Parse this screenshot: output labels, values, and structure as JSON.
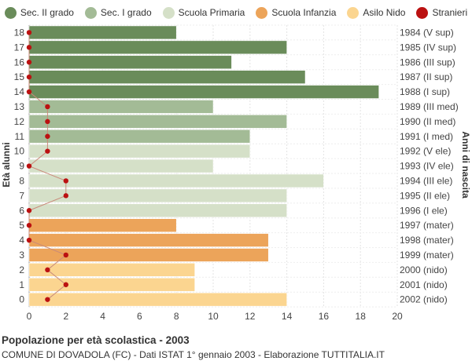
{
  "legend": [
    {
      "label": "Sec. II grado",
      "color": "#6a8c5a"
    },
    {
      "label": "Sec. I grado",
      "color": "#a3bb96"
    },
    {
      "label": "Scuola Primaria",
      "color": "#d5e0c8"
    },
    {
      "label": "Scuola Infanzia",
      "color": "#eca45a"
    },
    {
      "label": "Asilo Nido",
      "color": "#fbd590"
    },
    {
      "label": "Stranieri",
      "color": "#bb1111"
    }
  ],
  "footer": {
    "title": "Popolazione per età scolastica - 2003",
    "subtitle": "COMUNE DI DOVADOLA (FC) - Dati ISTAT 1° gennaio 2003 - Elaborazione TUTTITALIA.IT"
  },
  "chart_data": {
    "type": "bar",
    "orientation": "horizontal",
    "ylabel": "Età alunni",
    "y2label": "Anni di nascita",
    "xlim": [
      0,
      20
    ],
    "xticks": [
      0,
      2,
      4,
      6,
      8,
      10,
      12,
      14,
      16,
      18,
      20
    ],
    "grid": true,
    "legend_position": "top",
    "categories": [
      "18",
      "17",
      "16",
      "15",
      "14",
      "13",
      "12",
      "11",
      "10",
      "9",
      "8",
      "7",
      "6",
      "5",
      "4",
      "3",
      "2",
      "1",
      "0"
    ],
    "birth_years": [
      "1984 (V sup)",
      "1985 (IV sup)",
      "1986 (III sup)",
      "1987 (II sup)",
      "1988 (I sup)",
      "1989 (III med)",
      "1990 (II med)",
      "1991 (I med)",
      "1992 (V ele)",
      "1993 (IV ele)",
      "1994 (III ele)",
      "1995 (II ele)",
      "1996 (I ele)",
      "1997 (mater)",
      "1998 (mater)",
      "1999 (mater)",
      "2000 (nido)",
      "2001 (nido)",
      "2002 (nido)"
    ],
    "values": [
      8,
      14,
      11,
      15,
      19,
      10,
      14,
      12,
      12,
      10,
      16,
      14,
      14,
      8,
      13,
      13,
      9,
      9,
      14
    ],
    "groups": [
      "Sec. II grado",
      "Sec. II grado",
      "Sec. II grado",
      "Sec. II grado",
      "Sec. II grado",
      "Sec. I grado",
      "Sec. I grado",
      "Sec. I grado",
      "Scuola Primaria",
      "Scuola Primaria",
      "Scuola Primaria",
      "Scuola Primaria",
      "Scuola Primaria",
      "Scuola Infanzia",
      "Scuola Infanzia",
      "Scuola Infanzia",
      "Asilo Nido",
      "Asilo Nido",
      "Asilo Nido"
    ],
    "stranieri": [
      0,
      0,
      0,
      0,
      0,
      1,
      1,
      1,
      1,
      0,
      2,
      2,
      0,
      0,
      0,
      2,
      1,
      2,
      1
    ]
  }
}
